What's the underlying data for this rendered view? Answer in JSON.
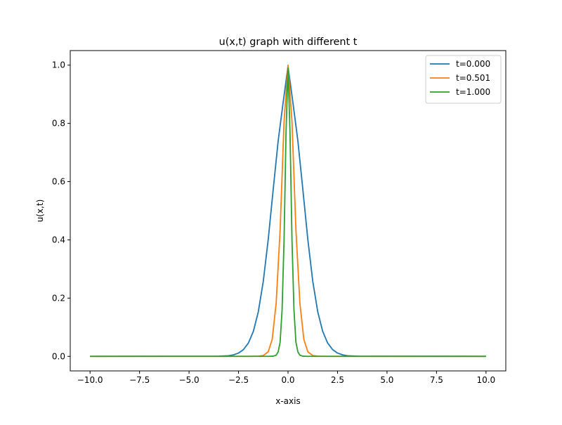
{
  "chart_data": {
    "type": "line",
    "title": "u(x,t) graph with different t",
    "xlabel": "x-axis",
    "ylabel": "u(x,t)",
    "xlim": [
      -11.0,
      11.0
    ],
    "ylim": [
      -0.05,
      1.05
    ],
    "xticks": [
      -10.0,
      -7.5,
      -5.0,
      -2.5,
      0.0,
      2.5,
      5.0,
      7.5,
      10.0
    ],
    "xtick_labels": [
      "−10.0",
      "−7.5",
      "−5.0",
      "−2.5",
      "0.0",
      "2.5",
      "5.0",
      "7.5",
      "10.0"
    ],
    "yticks": [
      0.0,
      0.2,
      0.4,
      0.6,
      0.8,
      1.0
    ],
    "ytick_labels": [
      "0.0",
      "0.2",
      "0.4",
      "0.6",
      "0.8",
      "1.0"
    ],
    "grid": false,
    "legend_position": "top-right",
    "series": [
      {
        "name": "t=0.000",
        "color": "#1f77b4",
        "x": [
          -10.0,
          -3.5,
          -3.0,
          -2.75,
          -2.5,
          -2.25,
          -2.0,
          -1.75,
          -1.5,
          -1.25,
          -1.0,
          -0.75,
          -0.5,
          -0.25,
          0.0,
          0.25,
          0.5,
          0.75,
          1.0,
          1.25,
          1.5,
          1.75,
          2.0,
          2.25,
          2.5,
          2.75,
          3.0,
          3.5,
          10.0
        ],
        "y": [
          0.0,
          0.0005,
          0.0022,
          0.0052,
          0.0113,
          0.0233,
          0.046,
          0.086,
          0.1534,
          0.2576,
          0.4014,
          0.5719,
          0.7384,
          0.8698,
          0.996,
          0.8698,
          0.7384,
          0.5719,
          0.4014,
          0.2576,
          0.1534,
          0.086,
          0.046,
          0.0233,
          0.0113,
          0.0052,
          0.0022,
          0.0005,
          0.0
        ]
      },
      {
        "name": "t=0.501",
        "color": "#ff7f0e",
        "x": [
          -10.0,
          -2.0,
          -1.5,
          -1.25,
          -1.0,
          -0.8,
          -0.6,
          -0.4,
          -0.2,
          0.0,
          0.2,
          0.4,
          0.6,
          0.8,
          1.0,
          1.25,
          1.5,
          2.0,
          10.0
        ],
        "y": [
          0.0,
          0.0,
          0.0006,
          0.0026,
          0.0157,
          0.058,
          0.182,
          0.432,
          0.806,
          1.0,
          0.806,
          0.432,
          0.182,
          0.058,
          0.0157,
          0.0026,
          0.0006,
          0.0,
          0.0
        ]
      },
      {
        "name": "t=1.000",
        "color": "#2ca02c",
        "x": [
          -10.0,
          -1.0,
          -0.75,
          -0.6,
          -0.5,
          -0.4,
          -0.3,
          -0.2,
          -0.1,
          0.0,
          0.1,
          0.2,
          0.3,
          0.4,
          0.5,
          0.6,
          0.75,
          1.0,
          10.0
        ],
        "y": [
          0.0,
          0.0,
          0.0005,
          0.004,
          0.015,
          0.048,
          0.16,
          0.4,
          0.77,
          0.99,
          0.77,
          0.4,
          0.16,
          0.048,
          0.015,
          0.004,
          0.0005,
          0.0,
          0.0
        ]
      }
    ]
  }
}
